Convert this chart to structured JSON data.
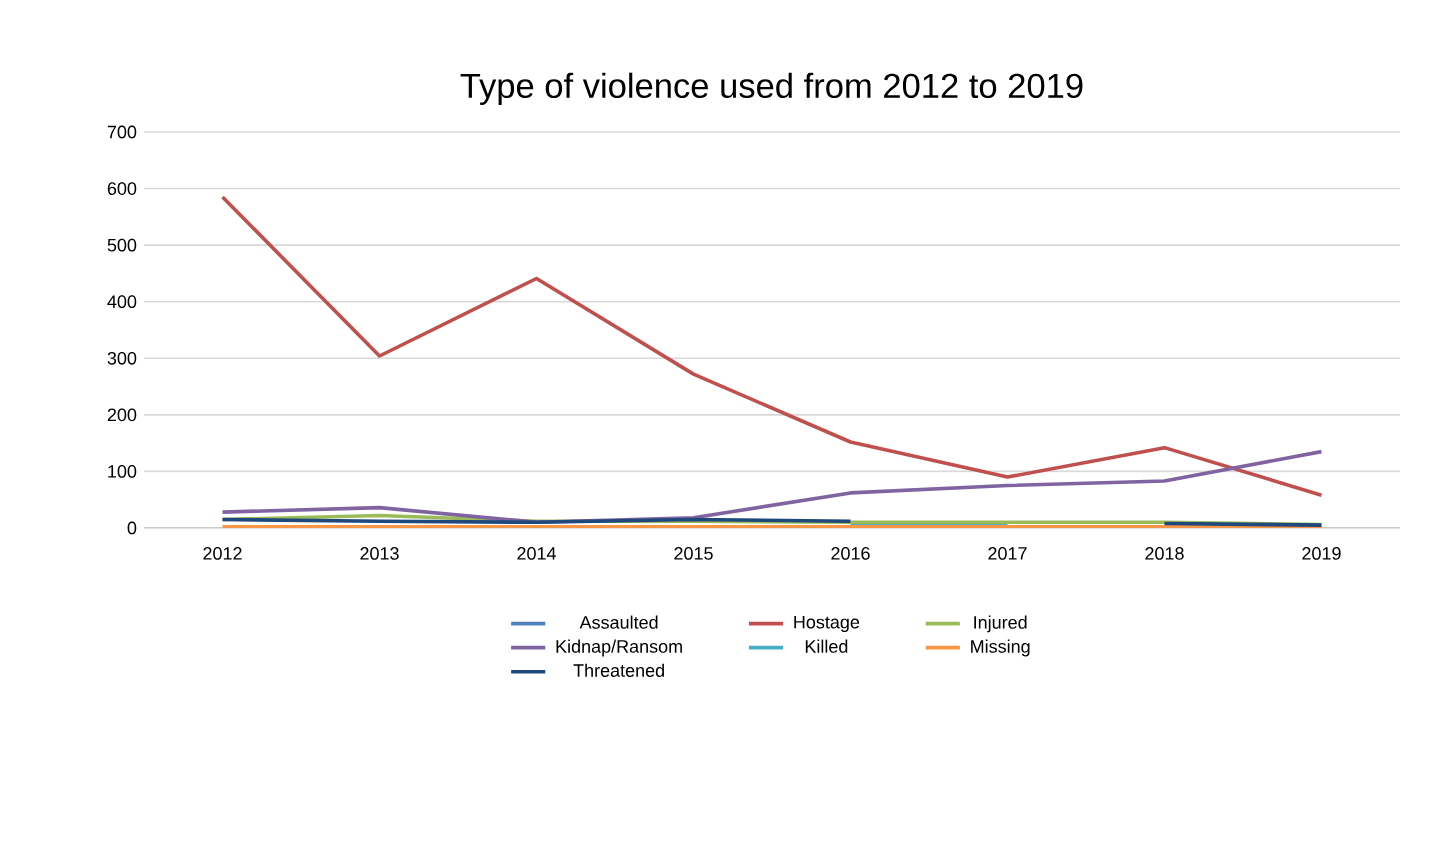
{
  "chart_data": {
    "type": "line",
    "title": "Type of violence used from 2012 to 2019",
    "categories": [
      "2012",
      "2013",
      "2014",
      "2015",
      "2016",
      "2017",
      "2018",
      "2019"
    ],
    "ylim": [
      0,
      700
    ],
    "yticks": [
      0,
      100,
      200,
      300,
      400,
      500,
      600,
      700
    ],
    "grid": "y",
    "legend": "bottom",
    "marker": "none",
    "line_style": "solid",
    "series": [
      {
        "name": "Assaulted",
        "color": "#4f81bd",
        "values": [
          null,
          null,
          null,
          null,
          null,
          null,
          null,
          null
        ]
      },
      {
        "name": "Hostage",
        "color": "#c0504d",
        "values": [
          585,
          304,
          441,
          272,
          152,
          90,
          142,
          58
        ]
      },
      {
        "name": "Injured",
        "color": "#9bbb59",
        "values": [
          15,
          22,
          12,
          12,
          10,
          10,
          10,
          6
        ]
      },
      {
        "name": "Kidnap/Ransom",
        "color": "#8064a2",
        "values": [
          28,
          36,
          10,
          18,
          62,
          75,
          83,
          135
        ]
      },
      {
        "name": "Killed",
        "color": "#4bacc6",
        "values": [
          null,
          null,
          null,
          null,
          4,
          4,
          null,
          null
        ]
      },
      {
        "name": "Missing",
        "color": "#f79646",
        "values": [
          2,
          2,
          2,
          2,
          2,
          2,
          2,
          2
        ]
      },
      {
        "name": "Threatened",
        "color": "#1f497d",
        "values": [
          15,
          12,
          10,
          15,
          12,
          null,
          8,
          5
        ]
      }
    ]
  }
}
